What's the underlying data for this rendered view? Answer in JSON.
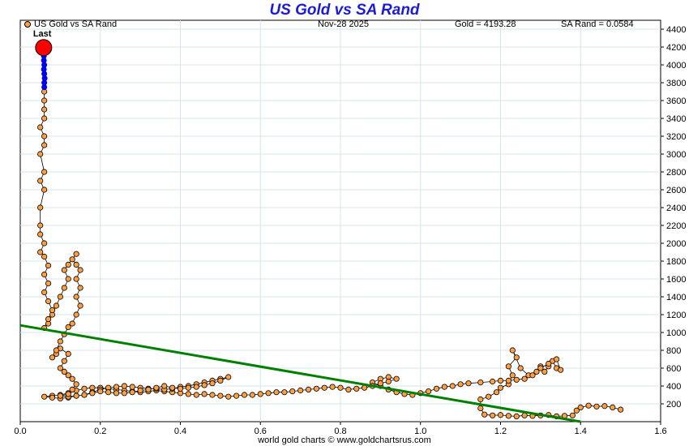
{
  "header": {
    "title": "US Gold vs SA Rand",
    "date": "Nov-28  2025",
    "gold_label": "Gold = 4193.28",
    "rand_label": "SA Rand = 0.0584",
    "footer": "world gold charts © www.goldchartsrus.com"
  },
  "chart_data": {
    "type": "scatter",
    "title": "US Gold vs SA Rand",
    "xlabel": "",
    "ylabel": "",
    "xlim": [
      0.0,
      1.6
    ],
    "ylim": [
      0,
      4500
    ],
    "x_ticks": [
      "0.0",
      "0.2",
      "0.4",
      "0.6",
      "0.8",
      "1.0",
      "1.2",
      "1.4",
      "1.6"
    ],
    "y_ticks": [
      "200",
      "400",
      "600",
      "800",
      "1000",
      "1200",
      "1400",
      "1600",
      "1800",
      "2000",
      "2200",
      "2400",
      "2600",
      "2800",
      "3000",
      "3200",
      "3400",
      "3600",
      "3800",
      "4000",
      "4200",
      "4400"
    ],
    "grid": true,
    "legend": {
      "position": "top-left",
      "entries": [
        "US Gold vs SA Rand"
      ]
    },
    "colors": {
      "series": "#ff9f40",
      "recent": "#0000ff",
      "last": "#ff0000",
      "trend": "#008000",
      "title": "#1c1cd6"
    },
    "last_point": {
      "label": "Last",
      "x": 0.0584,
      "y": 4193.28
    },
    "trendline": {
      "x": [
        0.0,
        1.4
      ],
      "y": [
        1080,
        0
      ]
    },
    "series": [
      {
        "name": "US Gold vs SA Rand",
        "points": [
          [
            1.5,
            135
          ],
          [
            1.48,
            160
          ],
          [
            1.46,
            175
          ],
          [
            1.44,
            170
          ],
          [
            1.42,
            180
          ],
          [
            1.4,
            160
          ],
          [
            1.39,
            125
          ],
          [
            1.38,
            70
          ],
          [
            1.36,
            65
          ],
          [
            1.34,
            60
          ],
          [
            1.32,
            75
          ],
          [
            1.3,
            70
          ],
          [
            1.28,
            65
          ],
          [
            1.26,
            70
          ],
          [
            1.24,
            60
          ],
          [
            1.22,
            65
          ],
          [
            1.2,
            75
          ],
          [
            1.18,
            70
          ],
          [
            1.16,
            80
          ],
          [
            1.15,
            150
          ],
          [
            1.15,
            250
          ],
          [
            1.17,
            280
          ],
          [
            1.19,
            330
          ],
          [
            1.2,
            380
          ],
          [
            1.22,
            420
          ],
          [
            1.23,
            520
          ],
          [
            1.22,
            620
          ],
          [
            1.24,
            720
          ],
          [
            1.23,
            800
          ],
          [
            1.25,
            600
          ],
          [
            1.27,
            520
          ],
          [
            1.29,
            560
          ],
          [
            1.3,
            620
          ],
          [
            1.31,
            560
          ],
          [
            1.32,
            620
          ],
          [
            1.33,
            680
          ],
          [
            1.34,
            600
          ],
          [
            1.35,
            580
          ],
          [
            1.34,
            700
          ],
          [
            1.32,
            650
          ],
          [
            1.3,
            600
          ],
          [
            1.28,
            520
          ],
          [
            1.26,
            480
          ],
          [
            1.24,
            470
          ],
          [
            1.22,
            460
          ],
          [
            1.2,
            460
          ],
          [
            1.18,
            450
          ],
          [
            1.15,
            440
          ],
          [
            1.12,
            430
          ],
          [
            1.1,
            420
          ],
          [
            1.08,
            400
          ],
          [
            1.06,
            390
          ],
          [
            1.04,
            370
          ],
          [
            1.02,
            340
          ],
          [
            1.0,
            320
          ],
          [
            0.98,
            300
          ],
          [
            0.96,
            310
          ],
          [
            0.94,
            330
          ],
          [
            0.92,
            360
          ],
          [
            0.9,
            400
          ],
          [
            0.88,
            440
          ],
          [
            0.9,
            480
          ],
          [
            0.92,
            500
          ],
          [
            0.94,
            480
          ],
          [
            0.92,
            450
          ],
          [
            0.9,
            430
          ],
          [
            0.88,
            400
          ],
          [
            0.86,
            380
          ],
          [
            0.84,
            370
          ],
          [
            0.82,
            360
          ],
          [
            0.8,
            380
          ],
          [
            0.78,
            390
          ],
          [
            0.76,
            380
          ],
          [
            0.74,
            370
          ],
          [
            0.72,
            360
          ],
          [
            0.7,
            350
          ],
          [
            0.68,
            340
          ],
          [
            0.66,
            330
          ],
          [
            0.64,
            330
          ],
          [
            0.62,
            320
          ],
          [
            0.6,
            310
          ],
          [
            0.58,
            300
          ],
          [
            0.56,
            300
          ],
          [
            0.54,
            290
          ],
          [
            0.52,
            280
          ],
          [
            0.5,
            290
          ],
          [
            0.48,
            300
          ],
          [
            0.46,
            310
          ],
          [
            0.44,
            300
          ],
          [
            0.42,
            310
          ],
          [
            0.4,
            320
          ],
          [
            0.38,
            330
          ],
          [
            0.36,
            340
          ],
          [
            0.34,
            350
          ],
          [
            0.32,
            340
          ],
          [
            0.3,
            330
          ],
          [
            0.28,
            340
          ],
          [
            0.26,
            350
          ],
          [
            0.24,
            360
          ],
          [
            0.22,
            370
          ],
          [
            0.2,
            380
          ],
          [
            0.18,
            380
          ],
          [
            0.16,
            370
          ],
          [
            0.14,
            350
          ],
          [
            0.12,
            320
          ],
          [
            0.1,
            300
          ],
          [
            0.08,
            290
          ],
          [
            0.06,
            280
          ],
          [
            0.08,
            270
          ],
          [
            0.1,
            260
          ],
          [
            0.12,
            270
          ],
          [
            0.14,
            290
          ],
          [
            0.16,
            300
          ],
          [
            0.18,
            330
          ],
          [
            0.2,
            360
          ],
          [
            0.22,
            380
          ],
          [
            0.24,
            390
          ],
          [
            0.26,
            400
          ],
          [
            0.28,
            390
          ],
          [
            0.3,
            380
          ],
          [
            0.32,
            370
          ],
          [
            0.34,
            370
          ],
          [
            0.36,
            360
          ],
          [
            0.38,
            370
          ],
          [
            0.4,
            390
          ],
          [
            0.42,
            400
          ],
          [
            0.44,
            420
          ],
          [
            0.46,
            440
          ],
          [
            0.48,
            460
          ],
          [
            0.5,
            480
          ],
          [
            0.52,
            500
          ],
          [
            0.5,
            460
          ],
          [
            0.48,
            430
          ],
          [
            0.46,
            410
          ],
          [
            0.44,
            390
          ],
          [
            0.42,
            380
          ],
          [
            0.4,
            370
          ],
          [
            0.38,
            380
          ],
          [
            0.36,
            400
          ],
          [
            0.34,
            380
          ],
          [
            0.32,
            360
          ],
          [
            0.3,
            350
          ],
          [
            0.28,
            330
          ],
          [
            0.26,
            320
          ],
          [
            0.24,
            320
          ],
          [
            0.22,
            330
          ],
          [
            0.2,
            340
          ],
          [
            0.18,
            320
          ],
          [
            0.16,
            300
          ],
          [
            0.14,
            290
          ],
          [
            0.12,
            280
          ],
          [
            0.1,
            290
          ],
          [
            0.12,
            310
          ],
          [
            0.13,
            360
          ],
          [
            0.14,
            420
          ],
          [
            0.13,
            480
          ],
          [
            0.12,
            520
          ],
          [
            0.11,
            560
          ],
          [
            0.1,
            600
          ],
          [
            0.11,
            680
          ],
          [
            0.12,
            760
          ],
          [
            0.1,
            820
          ],
          [
            0.09,
            760
          ],
          [
            0.08,
            720
          ],
          [
            0.09,
            800
          ],
          [
            0.1,
            900
          ],
          [
            0.11,
            980
          ],
          [
            0.12,
            1060
          ],
          [
            0.13,
            1100
          ],
          [
            0.14,
            1200
          ],
          [
            0.15,
            1300
          ],
          [
            0.14,
            1400
          ],
          [
            0.15,
            1500
          ],
          [
            0.14,
            1600
          ],
          [
            0.15,
            1700
          ],
          [
            0.14,
            1760
          ],
          [
            0.13,
            1820
          ],
          [
            0.14,
            1880
          ],
          [
            0.12,
            1760
          ],
          [
            0.11,
            1700
          ],
          [
            0.12,
            1600
          ],
          [
            0.11,
            1500
          ],
          [
            0.1,
            1400
          ],
          [
            0.09,
            1300
          ],
          [
            0.08,
            1200
          ],
          [
            0.07,
            1100
          ],
          [
            0.06,
            1050
          ],
          [
            0.07,
            1150
          ],
          [
            0.08,
            1250
          ],
          [
            0.07,
            1350
          ],
          [
            0.06,
            1450
          ],
          [
            0.07,
            1550
          ],
          [
            0.06,
            1650
          ],
          [
            0.07,
            1750
          ],
          [
            0.06,
            1850
          ],
          [
            0.05,
            1900
          ],
          [
            0.06,
            2000
          ],
          [
            0.05,
            2100
          ],
          [
            0.05,
            2200
          ],
          [
            0.05,
            2400
          ],
          [
            0.06,
            2600
          ],
          [
            0.05,
            2700
          ],
          [
            0.06,
            2800
          ],
          [
            0.05,
            3000
          ],
          [
            0.06,
            3100
          ],
          [
            0.06,
            3200
          ],
          [
            0.05,
            3300
          ],
          [
            0.06,
            3400
          ],
          [
            0.06,
            3500
          ],
          [
            0.06,
            3600
          ],
          [
            0.06,
            3700
          ]
        ]
      },
      {
        "name": "recent",
        "points": [
          [
            0.06,
            3750
          ],
          [
            0.06,
            3800
          ],
          [
            0.061,
            3850
          ],
          [
            0.06,
            3900
          ],
          [
            0.059,
            3950
          ],
          [
            0.06,
            4000
          ],
          [
            0.059,
            4050
          ],
          [
            0.059,
            4100
          ],
          [
            0.058,
            4150
          ]
        ]
      }
    ]
  }
}
